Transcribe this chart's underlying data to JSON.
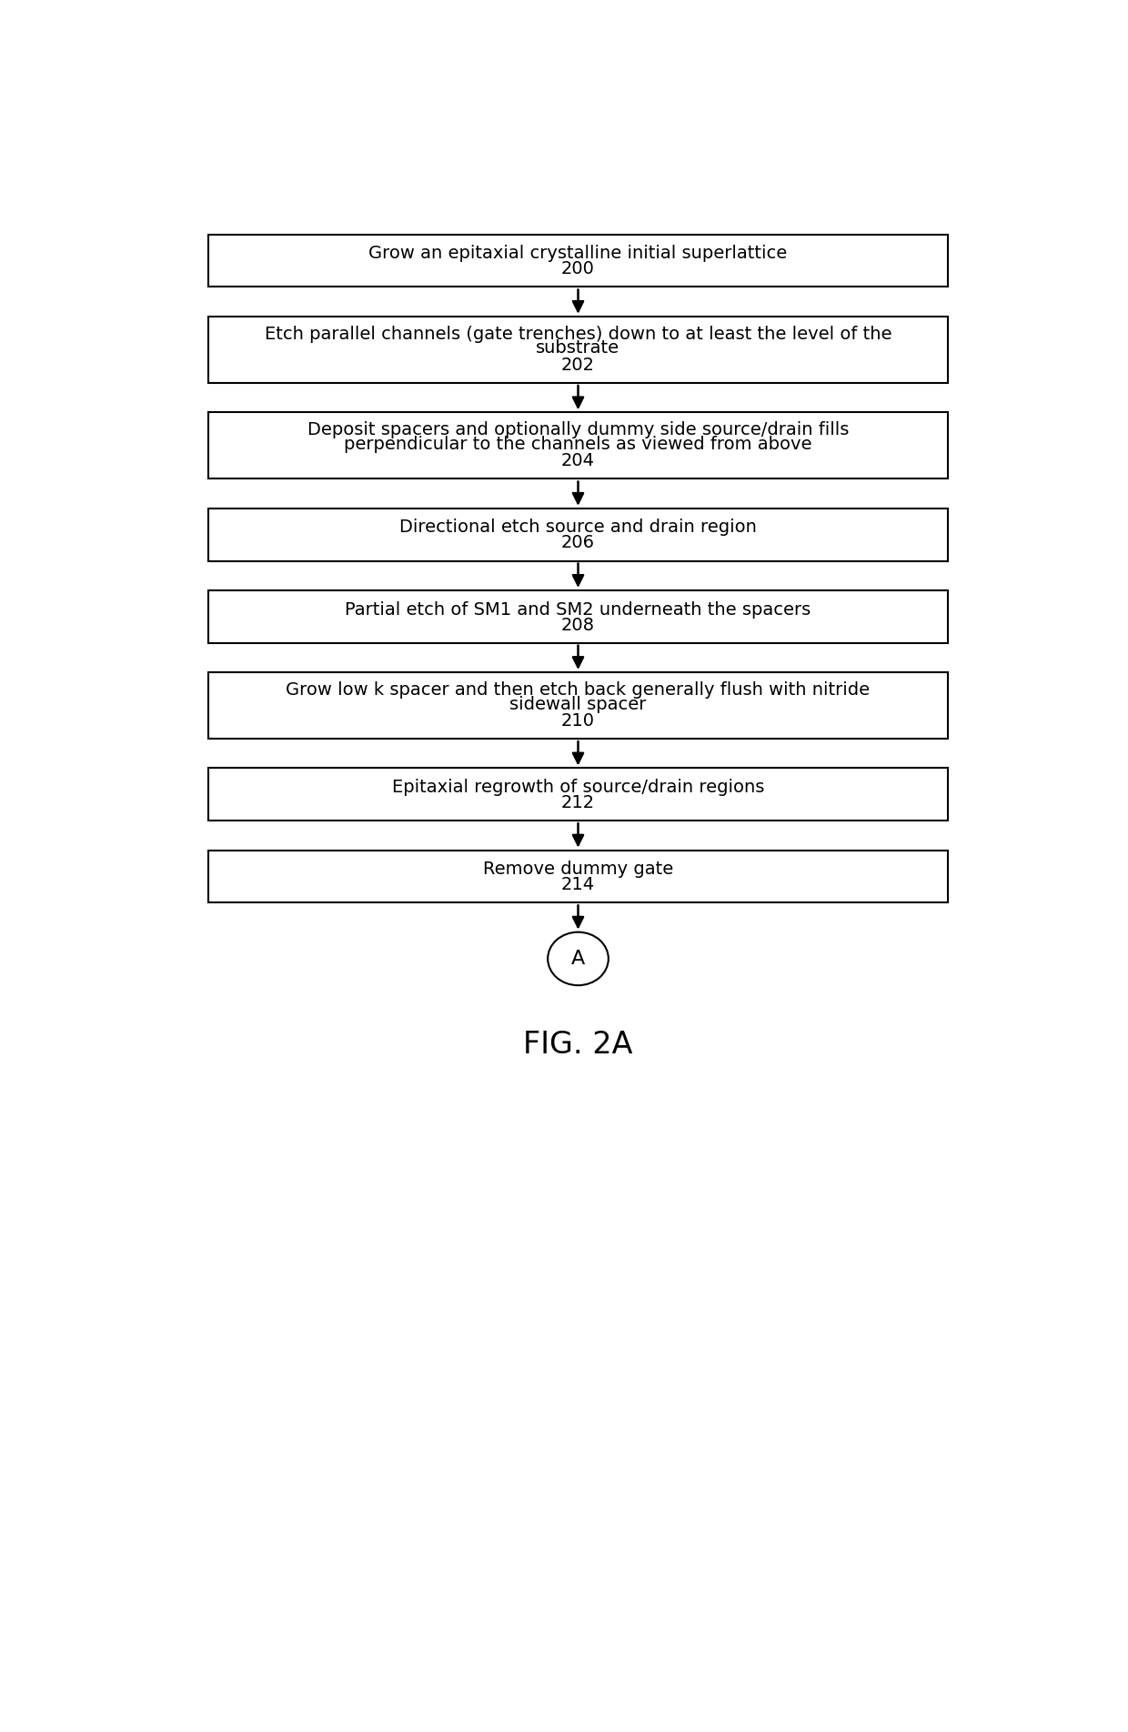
{
  "title": "FIG. 2A",
  "background_color": "#ffffff",
  "boxes": [
    {
      "id": 0,
      "lines": [
        "Grow an epitaxial crystalline initial superlattice"
      ],
      "number": "200",
      "n_lines": 1
    },
    {
      "id": 1,
      "lines": [
        "Etch parallel channels (gate trenches) down to at least the level of the",
        "substrate"
      ],
      "number": "202",
      "n_lines": 2
    },
    {
      "id": 2,
      "lines": [
        "Deposit spacers and optionally dummy side source/drain fills",
        "perpendicular to the channels as viewed from above"
      ],
      "number": "204",
      "n_lines": 2
    },
    {
      "id": 3,
      "lines": [
        "Directional etch source and drain region"
      ],
      "number": "206",
      "n_lines": 1
    },
    {
      "id": 4,
      "lines": [
        "Partial etch of SM1 and SM2 underneath the spacers"
      ],
      "number": "208",
      "n_lines": 1
    },
    {
      "id": 5,
      "lines": [
        "Grow low k spacer and then etch back generally flush with nitride",
        "sidewall spacer"
      ],
      "number": "210",
      "n_lines": 2
    },
    {
      "id": 6,
      "lines": [
        "Epitaxial regrowth of source/drain regions"
      ],
      "number": "212",
      "n_lines": 1
    },
    {
      "id": 7,
      "lines": [
        "Remove dummy gate"
      ],
      "number": "214",
      "n_lines": 1
    }
  ],
  "circle_label": "A",
  "box_edge_color": "#000000",
  "box_face_color": "#ffffff",
  "text_color": "#000000",
  "arrow_color": "#000000",
  "font_size": 14,
  "number_font_size": 14,
  "title_font_size": 24,
  "fig_width": 12.4,
  "fig_height": 19.04,
  "dpi": 100
}
